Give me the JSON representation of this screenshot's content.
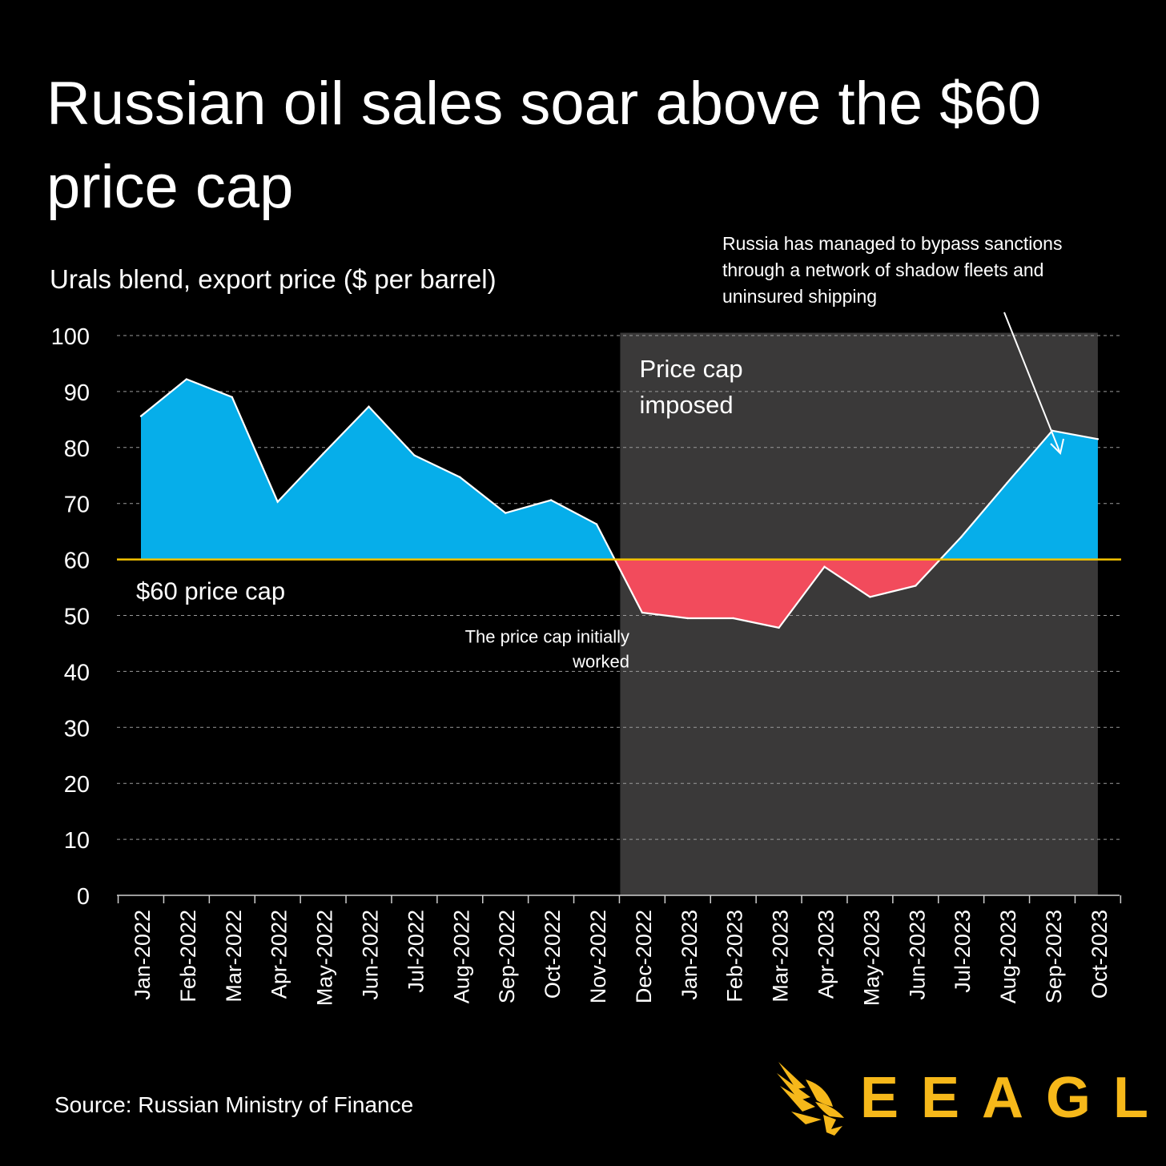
{
  "title": "Russian oil sales soar above the $60 price cap",
  "subtitle": "Urals blend, export price ($ per barrel)",
  "source": "Source: Russian Ministry of Finance",
  "brand": "EEAGLI",
  "colors": {
    "background": "#000000",
    "above_cap": "#06aeea",
    "below_cap": "#f24b5c",
    "cap_line": "#f4c300",
    "shade": "#3a3939",
    "grid": "#9a9a9a",
    "brand": "#f6b81a"
  },
  "chart_data": {
    "type": "area",
    "title": "Russian oil sales soar above the $60 price cap",
    "ylabel": "Urals blend, export price ($ per barrel)",
    "xlabel": "",
    "ylim": [
      0,
      100
    ],
    "yticks": [
      0,
      10,
      20,
      30,
      40,
      50,
      60,
      70,
      80,
      90,
      100
    ],
    "grid": true,
    "categories": [
      "Jan-2022",
      "Feb-2022",
      "Mar-2022",
      "Apr-2022",
      "May-2022",
      "Jun-2022",
      "Jul-2022",
      "Aug-2022",
      "Sep-2022",
      "Oct-2022",
      "Nov-2022",
      "Dec-2022",
      "Jan-2023",
      "Feb-2023",
      "Mar-2023",
      "Apr-2023",
      "May-2023",
      "Jun-2023",
      "Jul-2023",
      "Aug-2023",
      "Sep-2023",
      "Oct-2023"
    ],
    "values": [
      85.6,
      92.2,
      89.0,
      70.3,
      78.9,
      87.3,
      78.6,
      74.7,
      68.3,
      70.6,
      66.3,
      50.5,
      49.5,
      49.5,
      47.8,
      58.7,
      53.3,
      55.3,
      64.0,
      73.6,
      83.0,
      81.5
    ],
    "reference_line": {
      "value": 60,
      "label": "$60 price cap"
    },
    "shaded_region": {
      "from": "Dec-2022",
      "to": "Oct-2023",
      "label_line1": "Price cap",
      "label_line2": "imposed"
    },
    "annotations": {
      "worked_line1": "The price cap initially",
      "worked_line2": "worked",
      "bypass": "Russia has managed to bypass sanctions through a network of shadow fleets and uninsured shipping"
    }
  }
}
